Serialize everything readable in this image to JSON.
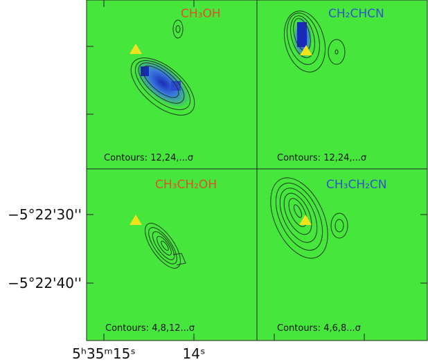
{
  "panels": [
    {
      "molecule": "CH₃OH",
      "contours": "Contours: 12,24,...σ"
    },
    {
      "molecule": "CH₂CHCN",
      "contours": "Contours: 12,24,...σ"
    },
    {
      "molecule": "CH₃CH₂OH",
      "contours": "Contours: 4,8,12...σ"
    },
    {
      "molecule": "CH₃CH₂CN",
      "contours": "Contours: 4,6,8...σ"
    }
  ],
  "y_axis": {
    "ticks": [
      "−5°22'30''",
      "−5°22'40''"
    ]
  },
  "x_axis": {
    "ticks": [
      "5ʰ35ᵐ15ˢ",
      "14ˢ"
    ]
  }
}
